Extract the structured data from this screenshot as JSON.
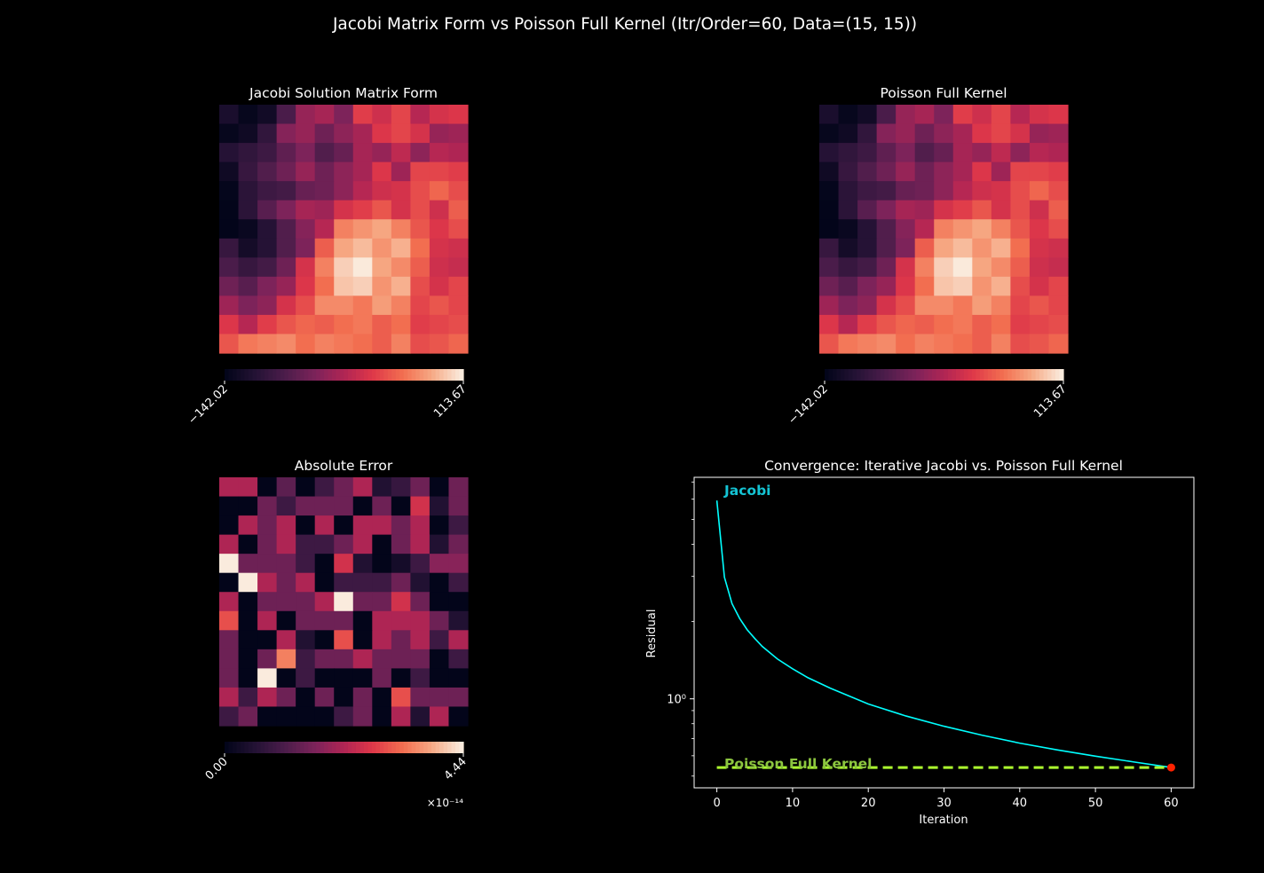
{
  "figure": {
    "title": "Jacobi Matrix Form vs Poisson Full Kernel (Itr/Order=60, Data=(15, 15))"
  },
  "chart_data": [
    {
      "type": "heatmap",
      "title": "Jacobi Solution Matrix Form",
      "rows": 13,
      "cols": 13,
      "colormap": "rocket",
      "colorbar": {
        "min": -142.02,
        "max": 113.67,
        "tick_labels": [
          "−142.02",
          "113.67"
        ]
      },
      "values": [
        [
          -120,
          -138,
          -128,
          -80,
          -30,
          -20,
          -45,
          20,
          5,
          25,
          -10,
          10,
          15
        ],
        [
          -138,
          -130,
          -100,
          -40,
          -30,
          -55,
          -35,
          -20,
          15,
          25,
          10,
          -30,
          -25
        ],
        [
          -110,
          -100,
          -90,
          -65,
          -45,
          -75,
          -60,
          -20,
          -30,
          -5,
          -35,
          -10,
          -15
        ],
        [
          -130,
          -95,
          -75,
          -55,
          -30,
          -55,
          -35,
          -20,
          15,
          -25,
          25,
          25,
          20
        ],
        [
          -140,
          -105,
          -90,
          -85,
          -60,
          -55,
          -35,
          -10,
          5,
          10,
          30,
          45,
          30
        ],
        [
          -142,
          -105,
          -70,
          -45,
          -20,
          -25,
          10,
          20,
          35,
          10,
          30,
          5,
          40
        ],
        [
          -142,
          -135,
          -110,
          -75,
          -40,
          -10,
          60,
          70,
          80,
          60,
          35,
          15,
          30
        ],
        [
          -95,
          -125,
          -110,
          -75,
          -45,
          40,
          80,
          90,
          70,
          85,
          50,
          10,
          5
        ],
        [
          -80,
          -95,
          -85,
          -55,
          10,
          60,
          100,
          113,
          80,
          65,
          40,
          5,
          0
        ],
        [
          -55,
          -70,
          -45,
          -30,
          15,
          50,
          95,
          100,
          70,
          85,
          30,
          10,
          25
        ],
        [
          -25,
          -45,
          -35,
          10,
          30,
          65,
          65,
          55,
          75,
          60,
          25,
          35,
          25
        ],
        [
          15,
          -10,
          20,
          35,
          45,
          40,
          50,
          55,
          40,
          50,
          20,
          25,
          30
        ],
        [
          35,
          55,
          60,
          65,
          50,
          60,
          55,
          50,
          40,
          60,
          30,
          35,
          45
        ]
      ]
    },
    {
      "type": "heatmap",
      "title": "Poisson Full Kernel",
      "rows": 13,
      "cols": 13,
      "colormap": "rocket",
      "colorbar": {
        "min": -142.02,
        "max": 113.67,
        "tick_labels": [
          "−142.02",
          "113.67"
        ]
      },
      "values": [
        [
          -120,
          -138,
          -128,
          -80,
          -30,
          -20,
          -45,
          20,
          5,
          25,
          -10,
          10,
          15
        ],
        [
          -138,
          -130,
          -100,
          -40,
          -30,
          -55,
          -35,
          -20,
          15,
          25,
          10,
          -30,
          -25
        ],
        [
          -110,
          -100,
          -90,
          -65,
          -45,
          -75,
          -60,
          -20,
          -30,
          -5,
          -35,
          -10,
          -15
        ],
        [
          -130,
          -95,
          -75,
          -55,
          -30,
          -55,
          -35,
          -20,
          15,
          -25,
          25,
          25,
          20
        ],
        [
          -140,
          -105,
          -90,
          -85,
          -60,
          -55,
          -35,
          -10,
          5,
          10,
          30,
          45,
          30
        ],
        [
          -142,
          -105,
          -70,
          -45,
          -20,
          -25,
          10,
          20,
          35,
          10,
          30,
          5,
          40
        ],
        [
          -142,
          -135,
          -110,
          -75,
          -40,
          -10,
          60,
          70,
          80,
          60,
          35,
          15,
          30
        ],
        [
          -95,
          -125,
          -110,
          -75,
          -45,
          40,
          80,
          90,
          70,
          85,
          50,
          10,
          5
        ],
        [
          -80,
          -95,
          -85,
          -55,
          10,
          60,
          100,
          113,
          80,
          65,
          40,
          5,
          0
        ],
        [
          -55,
          -70,
          -45,
          -30,
          15,
          50,
          95,
          100,
          70,
          85,
          30,
          10,
          25
        ],
        [
          -25,
          -45,
          -35,
          10,
          30,
          65,
          65,
          55,
          75,
          60,
          25,
          35,
          25
        ],
        [
          15,
          -10,
          20,
          35,
          45,
          40,
          50,
          55,
          40,
          50,
          20,
          25,
          30
        ],
        [
          35,
          55,
          60,
          65,
          50,
          60,
          55,
          50,
          40,
          60,
          30,
          35,
          45
        ]
      ]
    },
    {
      "type": "heatmap",
      "title": "Absolute Error",
      "rows": 13,
      "cols": 13,
      "colormap": "rocket",
      "colorbar": {
        "min": 0.0,
        "max": 4.44,
        "tick_labels": [
          "0.00",
          "4.44"
        ],
        "multiplier": "×10⁻¹⁴"
      },
      "values": [
        [
          2.2,
          2.2,
          0.0,
          1.3,
          0.0,
          0.9,
          1.5,
          2.2,
          0.5,
          0.8,
          1.5,
          0.0,
          1.5
        ],
        [
          0.0,
          0.0,
          1.5,
          0.9,
          1.5,
          1.5,
          1.5,
          0.0,
          1.5,
          0.0,
          2.6,
          0.5,
          1.5
        ],
        [
          0.0,
          2.2,
          1.5,
          2.2,
          0.0,
          2.2,
          0.0,
          2.2,
          2.2,
          1.5,
          2.2,
          0.0,
          0.9
        ],
        [
          2.2,
          0.0,
          1.5,
          2.2,
          0.9,
          0.9,
          1.5,
          2.2,
          0.0,
          1.5,
          2.2,
          0.5,
          1.5
        ],
        [
          4.44,
          1.5,
          1.5,
          1.5,
          0.9,
          0.0,
          2.6,
          0.5,
          0.0,
          0.3,
          0.9,
          1.8,
          1.8
        ],
        [
          0.0,
          4.44,
          2.2,
          1.5,
          2.2,
          0.0,
          0.9,
          0.9,
          0.9,
          1.5,
          0.5,
          0.0,
          0.9
        ],
        [
          2.2,
          0.0,
          1.5,
          1.5,
          1.5,
          2.2,
          4.44,
          1.5,
          1.5,
          2.6,
          1.5,
          0.0,
          0.0
        ],
        [
          3.0,
          0.0,
          2.2,
          0.0,
          1.5,
          1.5,
          1.5,
          0.0,
          2.2,
          2.2,
          2.2,
          1.5,
          0.5
        ],
        [
          1.5,
          0.0,
          0.0,
          2.2,
          0.5,
          0.0,
          3.0,
          0.0,
          2.2,
          1.5,
          2.2,
          0.9,
          2.2
        ],
        [
          1.5,
          0.0,
          1.5,
          3.5,
          0.9,
          1.5,
          1.5,
          2.2,
          1.5,
          1.5,
          1.5,
          0.0,
          0.9
        ],
        [
          1.5,
          0.0,
          4.44,
          0.0,
          0.9,
          0.0,
          0.0,
          0.0,
          1.5,
          0.0,
          0.9,
          0.0,
          0.0
        ],
        [
          2.2,
          0.9,
          2.2,
          1.5,
          0.0,
          1.5,
          0.0,
          1.5,
          0.0,
          3.0,
          1.5,
          1.5,
          1.5
        ],
        [
          0.9,
          1.5,
          0.0,
          0.0,
          0.0,
          0.0,
          0.9,
          1.5,
          0.0,
          2.2,
          0.5,
          2.2,
          0.0
        ]
      ]
    },
    {
      "type": "line",
      "title": "Convergence: Iterative Jacobi vs. Poisson Full Kernel",
      "xlabel": "Iteration",
      "ylabel": "Residual",
      "yscale": "log",
      "xlim": [
        -3,
        63
      ],
      "ylim": [
        0.45,
        7.3
      ],
      "x_ticks": [
        0,
        10,
        20,
        30,
        40,
        50,
        60
      ],
      "y_tick_label": "10⁰",
      "grid": false,
      "series": [
        {
          "name": "Jacobi",
          "color": "#00ffff",
          "style": "solid",
          "x": [
            0,
            1,
            2,
            3,
            4,
            5,
            6,
            8,
            10,
            12,
            15,
            20,
            25,
            30,
            35,
            40,
            45,
            50,
            55,
            60
          ],
          "y": [
            5.93,
            2.98,
            2.35,
            2.06,
            1.86,
            1.72,
            1.6,
            1.43,
            1.31,
            1.21,
            1.1,
            0.955,
            0.857,
            0.782,
            0.722,
            0.672,
            0.632,
            0.598,
            0.568,
            0.54
          ]
        },
        {
          "name": "Poisson Full Kernel",
          "color": "#adff2f",
          "style": "dashed",
          "x": [
            0,
            60
          ],
          "y": [
            0.54,
            0.54
          ]
        }
      ],
      "marker": {
        "x": 60,
        "y": 0.54,
        "color": "#ff2200"
      }
    }
  ]
}
